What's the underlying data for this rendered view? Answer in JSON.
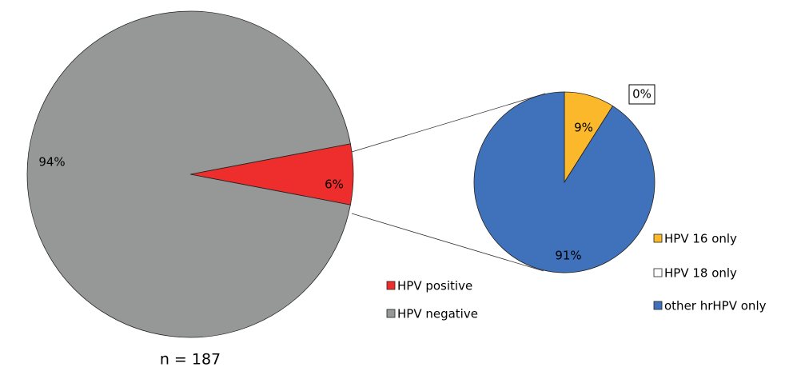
{
  "chart_data": [
    {
      "type": "pie",
      "categories": [
        "HPV positive",
        "HPV negative"
      ],
      "values": [
        6,
        94
      ],
      "value_labels": [
        "6%",
        "94%"
      ],
      "colors": [
        "#ee2d2d",
        "#969898"
      ],
      "annotation": "n = 187"
    },
    {
      "type": "pie",
      "categories": [
        "HPV 16 only",
        "HPV 18 only",
        "other hrHPV only"
      ],
      "values": [
        9,
        0,
        91
      ],
      "value_labels": [
        "9%",
        "0%",
        "91%"
      ],
      "colors": [
        "#fbb82a",
        "#ffffff",
        "#3f72bb"
      ]
    }
  ]
}
